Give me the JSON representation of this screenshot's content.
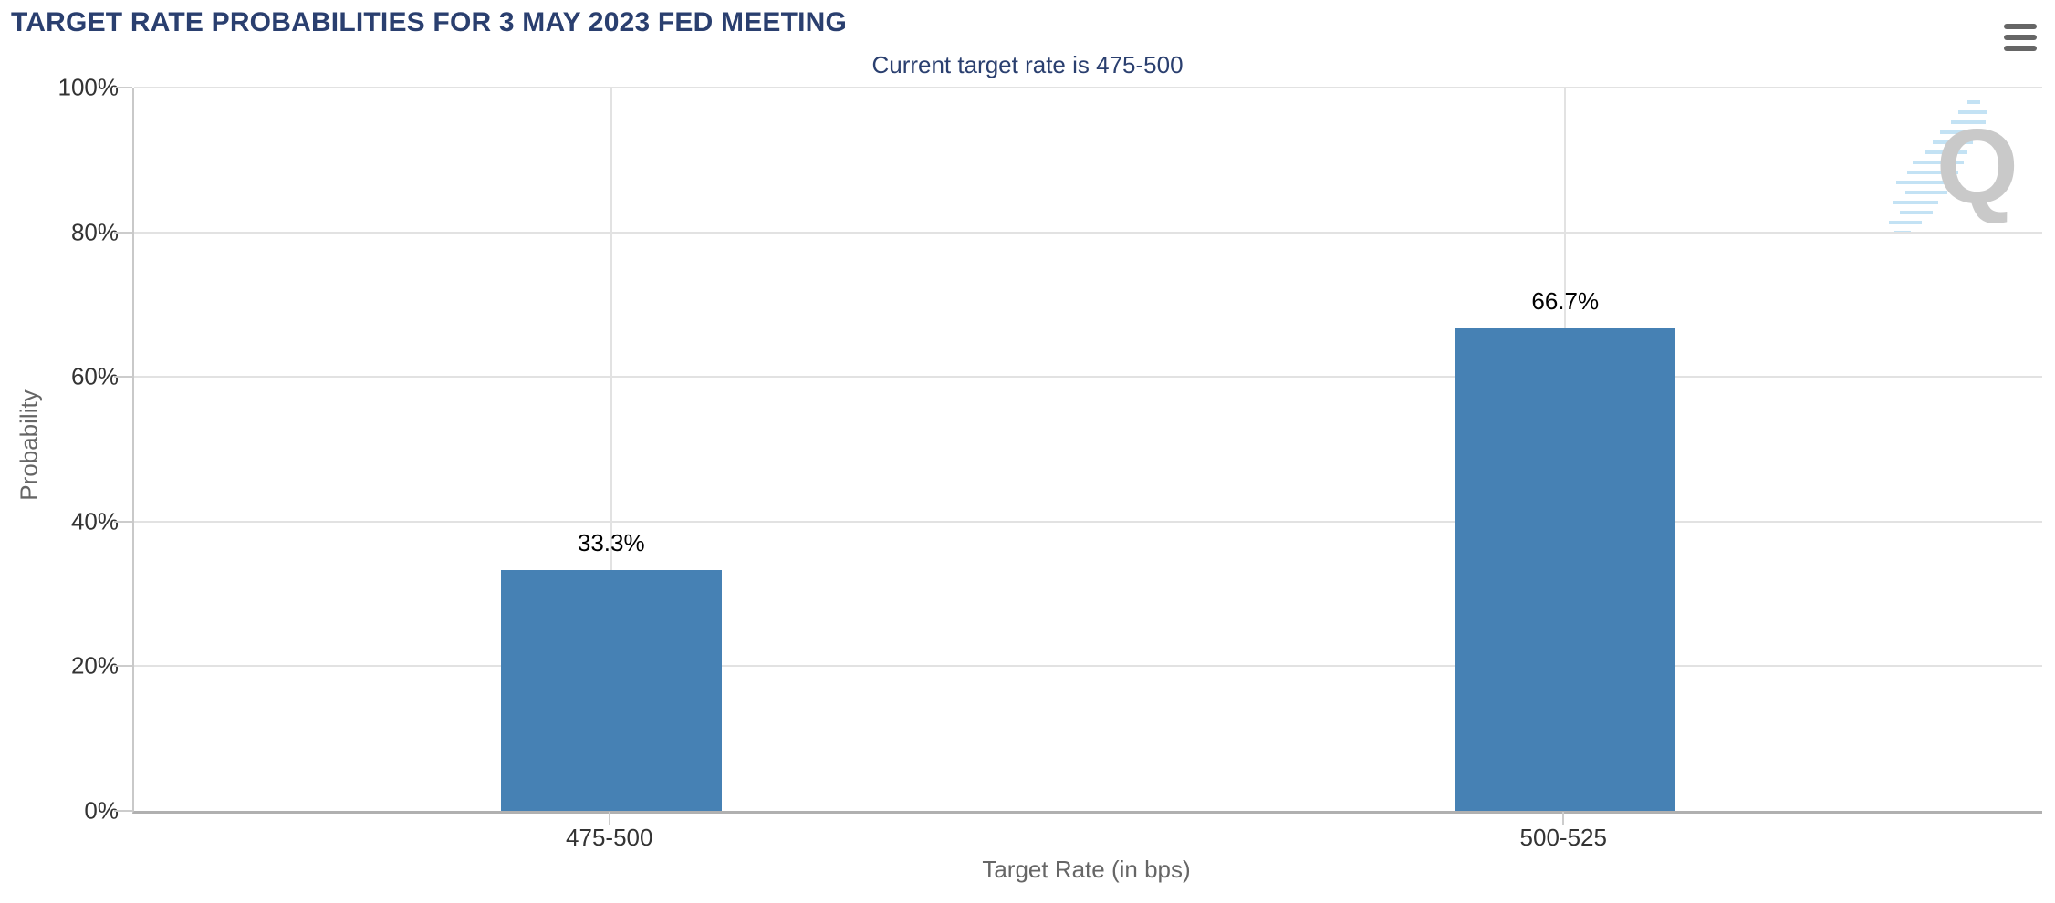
{
  "menu": {
    "tooltip": "Chart context menu"
  },
  "watermark": {
    "text": "Q"
  },
  "chart_data": {
    "type": "bar",
    "title": "TARGET RATE PROBABILITIES FOR 3 MAY 2023 FED MEETING",
    "subtitle": "Current target rate is 475-500",
    "categories": [
      "475-500",
      "500-525"
    ],
    "values": [
      33.3,
      66.7
    ],
    "data_labels": [
      "33.3%",
      "66.7%"
    ],
    "xlabel": "Target Rate (in bps)",
    "ylabel": "Probability",
    "ylim": [
      0,
      100
    ],
    "yticks": [
      0,
      20,
      40,
      60,
      80,
      100
    ],
    "ytick_labels": [
      "0%",
      "20%",
      "40%",
      "60%",
      "80%",
      "100%"
    ],
    "bar_color": "#4681b4",
    "title_color": "#2a3f6f",
    "grid": true,
    "legend": false
  }
}
